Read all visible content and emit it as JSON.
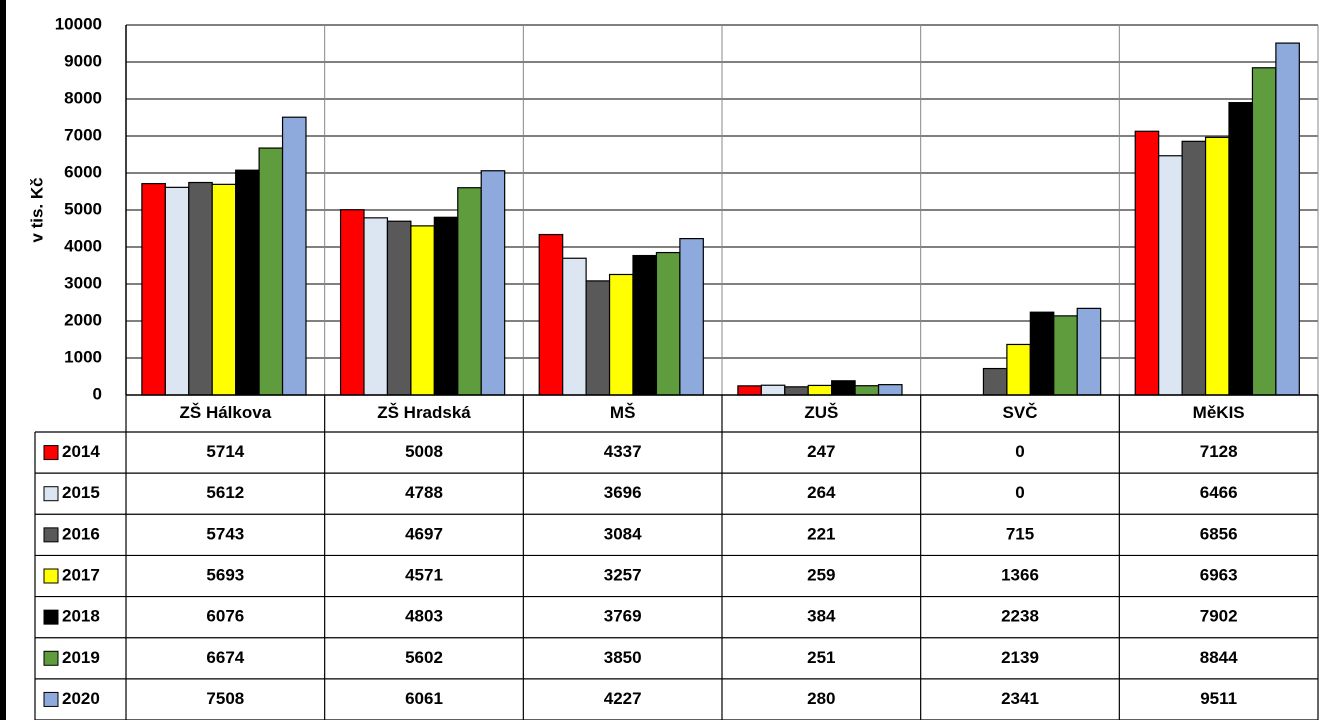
{
  "chart_data": {
    "type": "bar",
    "y_axis_label": "v  tis. Kč",
    "categories": [
      "ZŠ Hálkova",
      "ZŠ Hradská",
      "MŠ",
      "ZUŠ",
      "SVČ",
      "MěKIS"
    ],
    "series": [
      {
        "name": "2014",
        "color": "#ff0000",
        "values": [
          5714,
          5008,
          4337,
          247,
          0,
          7128
        ]
      },
      {
        "name": "2015",
        "color": "#dce6f2",
        "values": [
          5612,
          4788,
          3696,
          264,
          0,
          6466
        ]
      },
      {
        "name": "2016",
        "color": "#595959",
        "values": [
          5743,
          4697,
          3084,
          221,
          715,
          6856
        ]
      },
      {
        "name": "2017",
        "color": "#ffff00",
        "values": [
          5693,
          4571,
          3257,
          259,
          1366,
          6963
        ]
      },
      {
        "name": "2018",
        "color": "#000000",
        "values": [
          6076,
          4803,
          3769,
          384,
          2238,
          7902
        ]
      },
      {
        "name": "2019",
        "color": "#5e9c3e",
        "values": [
          6674,
          5602,
          3850,
          251,
          2139,
          8844
        ]
      },
      {
        "name": "2020",
        "color": "#8ea9db",
        "values": [
          7508,
          6061,
          4227,
          280,
          2341,
          9511
        ]
      }
    ],
    "ylim": [
      0,
      10000
    ],
    "yticks": [
      0,
      1000,
      2000,
      3000,
      4000,
      5000,
      6000,
      7000,
      8000,
      9000,
      10000
    ],
    "grid": true
  }
}
